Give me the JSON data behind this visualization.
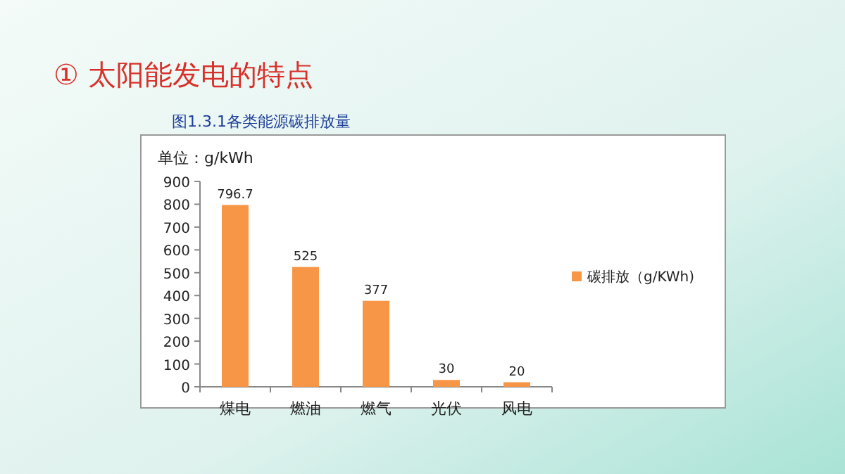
{
  "chart_data": {
    "type": "bar",
    "title": "① 太阳能发电的特点",
    "subtitle": "图1.3.1各类能源碳排放量",
    "ylabel": "单位：g/kWh",
    "categories": [
      "煤电",
      "燃油",
      "燃气",
      "光伏",
      "风电"
    ],
    "series": [
      {
        "name": "碳排放（g/KWh)",
        "color": "#f79646",
        "values": [
          796.7,
          525,
          377,
          30,
          20
        ]
      }
    ],
    "ylim": [
      0,
      900
    ],
    "yticks": [
      0,
      100,
      200,
      300,
      400,
      500,
      600,
      700,
      800,
      900
    ],
    "data_labels": true,
    "legend": "right",
    "grid": false
  }
}
